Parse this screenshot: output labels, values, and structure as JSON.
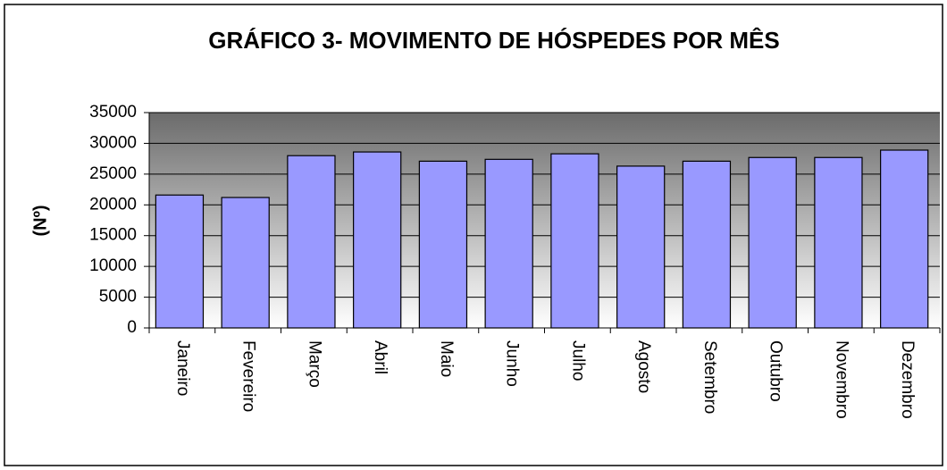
{
  "chart_data": {
    "type": "bar",
    "title": "GRÁFICO 3- MOVIMENTO DE HÓSPEDES POR MÊS",
    "y_label": "(Nº)",
    "categories": [
      "Janeiro",
      "Fevereiro",
      "Março",
      "Abril",
      "Maio",
      "Junho",
      "Julho",
      "Agosto",
      "Setembro",
      "Outubro",
      "Novembro",
      "Dezembro"
    ],
    "values": [
      21600,
      21200,
      28000,
      28600,
      27100,
      27400,
      28300,
      26300,
      27100,
      27700,
      27700,
      28900
    ],
    "color": "#9999ff",
    "ylim": [
      0,
      35000
    ],
    "yticks": [
      0,
      5000,
      10000,
      15000,
      20000,
      25000,
      30000,
      35000
    ],
    "grid": true
  }
}
